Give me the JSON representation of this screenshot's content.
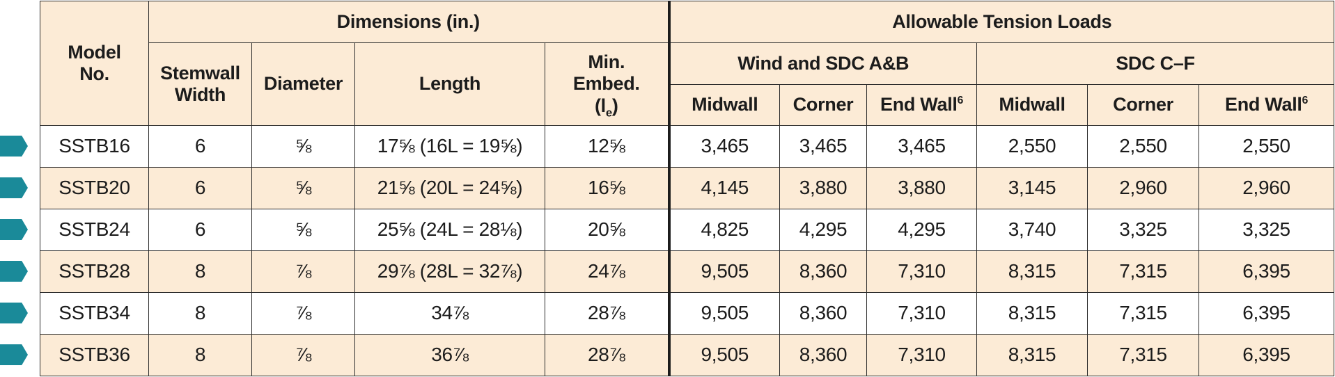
{
  "table": {
    "headers": {
      "model_no": "Model\nNo.",
      "dimensions_group": "Dimensions (in.)",
      "loads_group": "Allowable Tension Loads",
      "wind_group": "Wind and SDC A&B",
      "sdc_group": "SDC C–F",
      "stemwall_width": "Stemwall\nWidth",
      "diameter": "Diameter",
      "length": "Length",
      "min_embed": "Min.\nEmbed.",
      "min_embed_symbol": "(l",
      "min_embed_sub": "e",
      "min_embed_close": ")",
      "midwall": "Midwall",
      "corner": "Corner",
      "end_wall": "End Wall",
      "end_wall_note": "6"
    },
    "rows": [
      {
        "model": "SSTB16",
        "width": "6",
        "diameter": "⅝",
        "length": "17⅝ (16L = 19⅝)",
        "embed": "12⅝",
        "w_mid": "3,465",
        "w_corner": "3,465",
        "w_end": "3,465",
        "s_mid": "2,550",
        "s_corner": "2,550",
        "s_end": "2,550"
      },
      {
        "model": "SSTB20",
        "width": "6",
        "diameter": "⅝",
        "length": "21⅝ (20L = 24⅝)",
        "embed": "16⅝",
        "w_mid": "4,145",
        "w_corner": "3,880",
        "w_end": "3,880",
        "s_mid": "3,145",
        "s_corner": "2,960",
        "s_end": "2,960"
      },
      {
        "model": "SSTB24",
        "width": "6",
        "diameter": "⅝",
        "length": "25⅝ (24L = 28⅛)",
        "embed": "20⅝",
        "w_mid": "4,825",
        "w_corner": "4,295",
        "w_end": "4,295",
        "s_mid": "3,740",
        "s_corner": "3,325",
        "s_end": "3,325"
      },
      {
        "model": "SSTB28",
        "width": "8",
        "diameter": "⅞",
        "length": "29⅞ (28L = 32⅞)",
        "embed": "24⅞",
        "w_mid": "9,505",
        "w_corner": "8,360",
        "w_end": "7,310",
        "s_mid": "8,315",
        "s_corner": "7,315",
        "s_end": "6,395"
      },
      {
        "model": "SSTB34",
        "width": "8",
        "diameter": "⅞",
        "length": "34⅞",
        "embed": "28⅞",
        "w_mid": "9,505",
        "w_corner": "8,360",
        "w_end": "7,310",
        "s_mid": "8,315",
        "s_corner": "7,315",
        "s_end": "6,395"
      },
      {
        "model": "SSTB36",
        "width": "8",
        "diameter": "⅞",
        "length": "36⅞",
        "embed": "28⅞",
        "w_mid": "9,505",
        "w_corner": "8,360",
        "w_end": "7,310",
        "s_mid": "8,315",
        "s_corner": "7,315",
        "s_end": "6,395"
      }
    ]
  },
  "colors": {
    "header_bg": "#fcebd6",
    "alt_row_bg": "#fcebd6",
    "marker": "#1a8a99",
    "border": "#2b2b2b"
  }
}
